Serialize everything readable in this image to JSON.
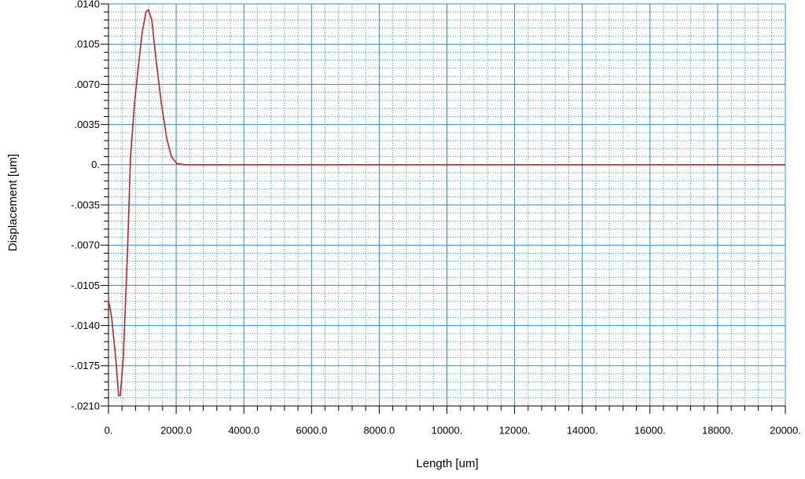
{
  "chart_data": {
    "type": "line",
    "x_label": "Length [um]",
    "y_label": "Displacement [um]",
    "x": [
      0,
      90,
      210,
      300,
      350,
      440,
      560,
      650,
      770,
      880,
      1000,
      1110,
      1180,
      1280,
      1420,
      1560,
      1720,
      1860,
      2020,
      2250,
      3300,
      20000
    ],
    "values": [
      -0.0118,
      -0.0132,
      -0.0167,
      -0.0201,
      -0.0201,
      -0.0167,
      -0.0077,
      0.0006,
      0.0054,
      0.0085,
      0.0116,
      0.0133,
      0.0135,
      0.0126,
      0.0088,
      0.0054,
      0.0023,
      0.0007,
      0.0001,
      0,
      0,
      0
    ],
    "color": "#d41a1a",
    "xlim": [
      0,
      20000
    ],
    "ylim": [
      -0.021,
      0.014
    ],
    "xticks": [
      {
        "value": 0,
        "label": "0."
      },
      {
        "value": 2000,
        "label": "2000.0"
      },
      {
        "value": 4000,
        "label": "4000.0"
      },
      {
        "value": 6000,
        "label": "6000.0"
      },
      {
        "value": 8000,
        "label": "8000.0"
      },
      {
        "value": 10000,
        "label": "10000."
      },
      {
        "value": 12000,
        "label": "12000."
      },
      {
        "value": 14000,
        "label": "14000."
      },
      {
        "value": 16000,
        "label": "16000."
      },
      {
        "value": 18000,
        "label": "18000."
      },
      {
        "value": 20000,
        "label": "20000."
      }
    ],
    "yticks": [
      {
        "value": 0.014,
        "label": ".0140"
      },
      {
        "value": 0.0105,
        "label": ".0105"
      },
      {
        "value": 0.007,
        "label": ".0070"
      },
      {
        "value": 0.0035,
        "label": ".0035"
      },
      {
        "value": 0,
        "label": "0."
      },
      {
        "value": -0.0035,
        "label": "-.0035"
      },
      {
        "value": -0.007,
        "label": "-.0070"
      },
      {
        "value": -0.0105,
        "label": "-.0105"
      },
      {
        "value": -0.014,
        "label": "-.0140"
      },
      {
        "value": -0.0175,
        "label": "-.0175"
      },
      {
        "value": -0.021,
        "label": "-.0210"
      }
    ],
    "grid": true
  }
}
